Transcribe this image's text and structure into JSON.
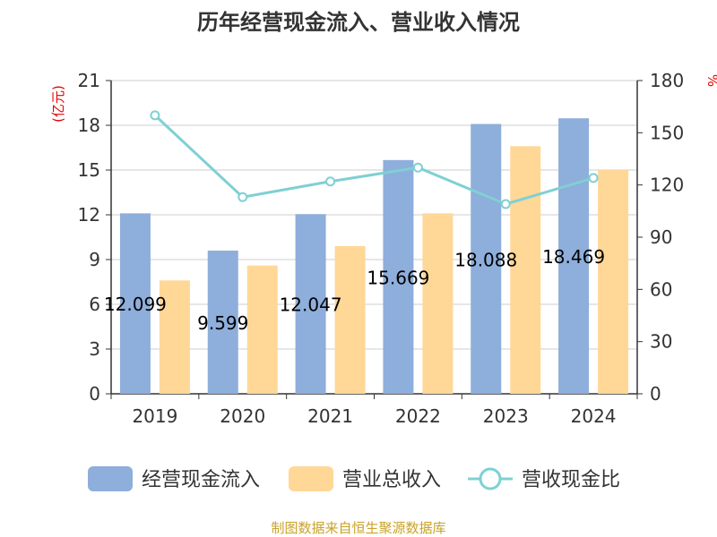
{
  "chart_data": {
    "type": "bar",
    "title": "历年经营现金流入、营业收入情况",
    "left_unit": "(亿元)",
    "right_unit": "%",
    "categories": [
      "2019",
      "2020",
      "2021",
      "2022",
      "2023",
      "2024"
    ],
    "series": [
      {
        "name": "经营现金流入",
        "type": "bar",
        "axis": "left",
        "color": "#8eaedb",
        "values": [
          12.099,
          9.599,
          12.047,
          15.669,
          18.088,
          18.469
        ],
        "labels": [
          "12.099",
          "9.599",
          "12.047",
          "15.669",
          "18.088",
          "18.469"
        ]
      },
      {
        "name": "营业总收入",
        "type": "bar",
        "axis": "left",
        "color": "#ffd797",
        "values": [
          7.6,
          8.6,
          9.9,
          12.1,
          16.6,
          15.0
        ]
      },
      {
        "name": "营收现金比",
        "type": "line",
        "axis": "right",
        "color": "#7fd0d3",
        "values": [
          160,
          113,
          122,
          130,
          109,
          124
        ]
      }
    ],
    "left_axis": {
      "min": 0,
      "max": 21,
      "ticks": [
        "0",
        "3",
        "6",
        "9",
        "12",
        "15",
        "18",
        "21"
      ]
    },
    "right_axis": {
      "min": 0,
      "max": 180,
      "ticks": [
        "0",
        "30",
        "60",
        "90",
        "120",
        "150",
        "180"
      ]
    },
    "grid": true,
    "legend_position": "bottom"
  },
  "source_note": "制图数据来自恒生聚源数据库"
}
